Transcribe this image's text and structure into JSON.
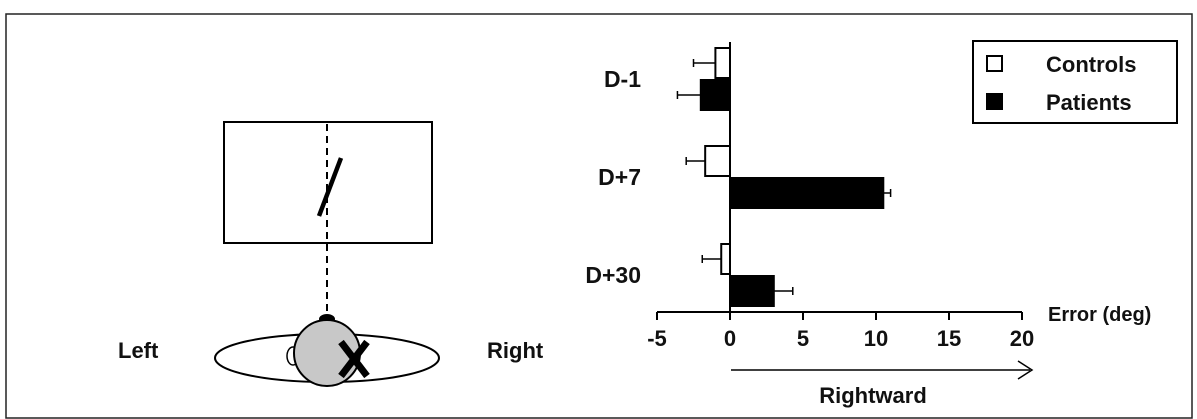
{
  "diagram": {
    "left_label": "Left",
    "right_label": "Right"
  },
  "chart_data": {
    "type": "bar",
    "orientation": "horizontal",
    "categories": [
      "D-1",
      "D+7",
      "D+30"
    ],
    "series": [
      {
        "name": "Controls",
        "values": [
          -1.0,
          -1.7,
          -0.6
        ],
        "errors": [
          1.5,
          1.3,
          1.3
        ],
        "color": "#ffffff"
      },
      {
        "name": "Patients",
        "values": [
          -2.0,
          10.5,
          3.0
        ],
        "errors": [
          1.6,
          0.5,
          1.3
        ],
        "color": "#000000"
      }
    ],
    "xlabel": "Error (deg)",
    "xlim": [
      -5,
      20
    ],
    "xticks": [
      -5,
      0,
      5,
      10,
      15,
      20
    ],
    "arrow_label": "Rightward",
    "legend_position": "top-right"
  }
}
